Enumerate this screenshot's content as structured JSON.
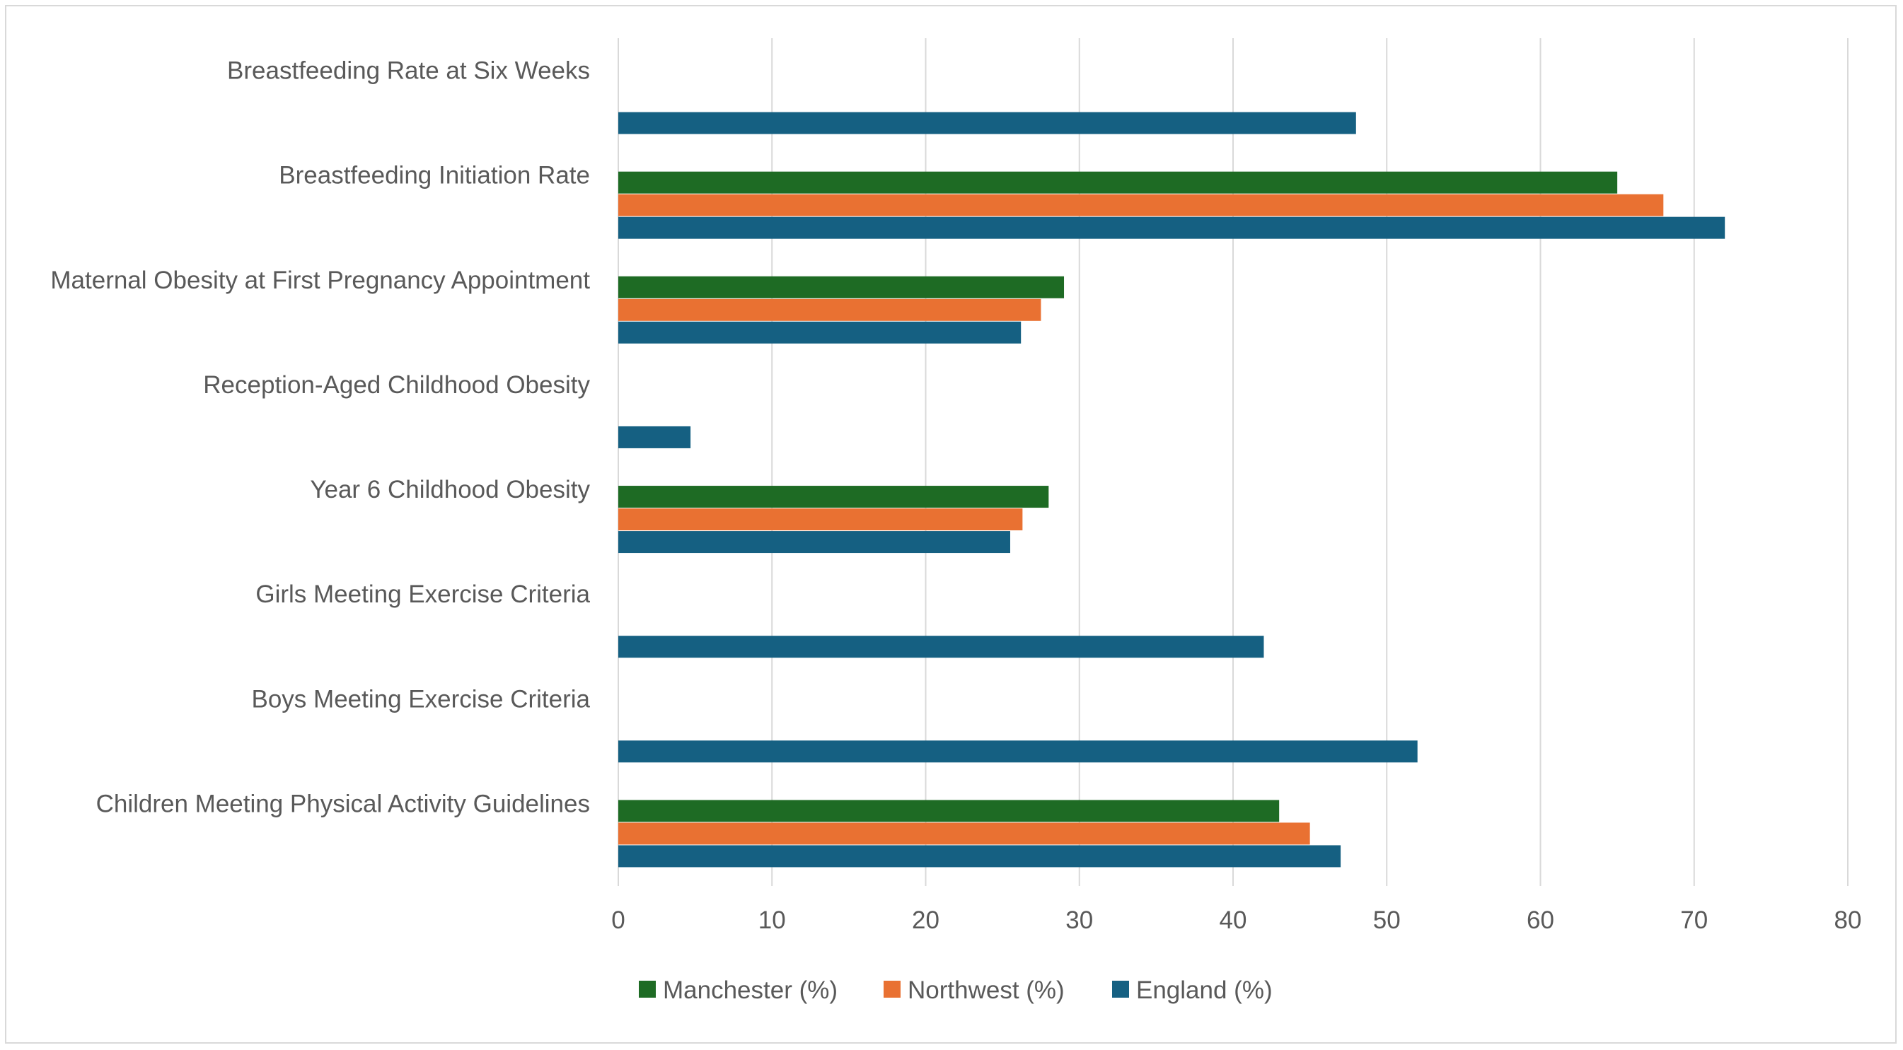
{
  "chart_data": {
    "type": "bar",
    "orientation": "horizontal",
    "title": "",
    "xlabel": "",
    "ylabel": "",
    "xlim": [
      0,
      80
    ],
    "x_ticks": [
      "0",
      "10",
      "20",
      "30",
      "40",
      "50",
      "60",
      "70",
      "80"
    ],
    "grid": true,
    "legend_position": "bottom",
    "categories": [
      "Breastfeeding Rate at Six Weeks",
      "Breastfeeding Initiation Rate",
      "Maternal Obesity at First Pregnancy Appointment",
      "Reception-Aged Childhood Obesity",
      "Year 6 Childhood Obesity",
      "Girls Meeting Exercise Criteria",
      "Boys Meeting Exercise Criteria",
      "Children Meeting Physical Activity Guidelines"
    ],
    "series": [
      {
        "name": "Manchester (%)",
        "color": "#1e6b24",
        "values": [
          null,
          65,
          29,
          null,
          28,
          null,
          null,
          43
        ]
      },
      {
        "name": "Northwest (%)",
        "color": "#e97132",
        "values": [
          null,
          68,
          27.5,
          null,
          26.3,
          null,
          null,
          45
        ]
      },
      {
        "name": "England (%)",
        "color": "#156082",
        "values": [
          48,
          72,
          26.2,
          4.7,
          25.5,
          42,
          52,
          47
        ]
      }
    ]
  }
}
